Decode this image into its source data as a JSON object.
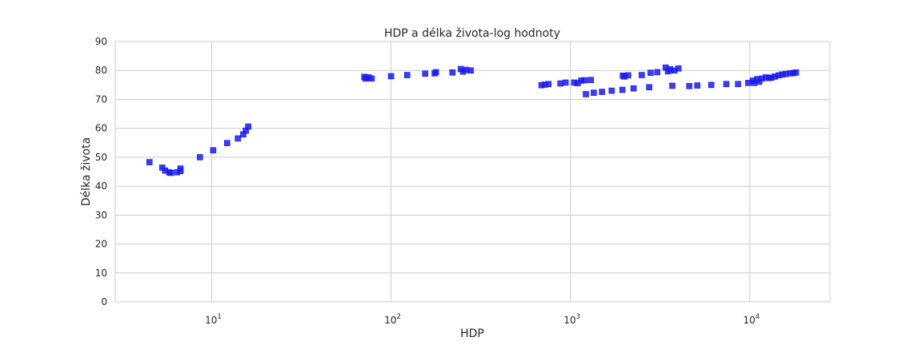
{
  "chart_data": {
    "type": "scatter",
    "title": "HDP a délka života-log hodnoty",
    "xlabel": "HDP",
    "ylabel": "Délka života",
    "x_scale": "log",
    "xlim": [
      2.9,
      28000
    ],
    "ylim": [
      0,
      90
    ],
    "y_ticks": [
      0,
      10,
      20,
      30,
      40,
      50,
      60,
      70,
      80,
      90
    ],
    "x_ticks": [
      {
        "value": 10,
        "base": "10",
        "exp": "1"
      },
      {
        "value": 100,
        "base": "10",
        "exp": "2"
      },
      {
        "value": 1000,
        "base": "10",
        "exp": "3"
      },
      {
        "value": 10000,
        "base": "10",
        "exp": "4"
      }
    ],
    "grid": true,
    "marker": "square",
    "color": "#1a1aee",
    "points": [
      [
        4.5,
        48.3
      ],
      [
        5.3,
        46.4
      ],
      [
        5.5,
        45.4
      ],
      [
        5.8,
        44.8
      ],
      [
        5.9,
        44.6
      ],
      [
        6.4,
        44.8
      ],
      [
        6.7,
        45.2
      ],
      [
        6.7,
        46.1
      ],
      [
        8.6,
        50.0
      ],
      [
        10.2,
        52.4
      ],
      [
        12.2,
        54.9
      ],
      [
        14.0,
        56.5
      ],
      [
        15.0,
        57.9
      ],
      [
        15.5,
        59.2
      ],
      [
        16.0,
        60.6
      ],
      [
        71,
        77.8
      ],
      [
        72,
        77.2
      ],
      [
        75,
        77.6
      ],
      [
        78,
        77.2
      ],
      [
        100,
        78.0
      ],
      [
        123,
        78.4
      ],
      [
        155,
        78.9
      ],
      [
        175,
        79.0
      ],
      [
        178,
        79.4
      ],
      [
        220,
        79.3
      ],
      [
        245,
        80.5
      ],
      [
        252,
        79.6
      ],
      [
        262,
        80.2
      ],
      [
        278,
        80.0
      ],
      [
        690,
        74.9
      ],
      [
        720,
        75.1
      ],
      [
        755,
        75.3
      ],
      [
        880,
        75.5
      ],
      [
        940,
        75.8
      ],
      [
        1050,
        75.8
      ],
      [
        1100,
        75.6
      ],
      [
        1150,
        76.5
      ],
      [
        1200,
        76.6
      ],
      [
        1300,
        76.7
      ],
      [
        1220,
        71.8
      ],
      [
        1350,
        72.3
      ],
      [
        1500,
        72.6
      ],
      [
        1700,
        73.0
      ],
      [
        1950,
        73.3
      ],
      [
        2250,
        73.8
      ],
      [
        2750,
        74.2
      ],
      [
        1960,
        78.2
      ],
      [
        2000,
        77.9
      ],
      [
        2100,
        78.3
      ],
      [
        2500,
        78.4
      ],
      [
        2800,
        79.2
      ],
      [
        3050,
        79.4
      ],
      [
        3400,
        81.0
      ],
      [
        3500,
        79.7
      ],
      [
        3600,
        80.4
      ],
      [
        3800,
        80.0
      ],
      [
        4000,
        80.7
      ],
      [
        3700,
        74.7
      ],
      [
        4600,
        74.6
      ],
      [
        5100,
        74.8
      ],
      [
        6100,
        75.0
      ],
      [
        7400,
        75.3
      ],
      [
        8600,
        75.3
      ],
      [
        9800,
        75.7
      ],
      [
        10400,
        76.5
      ],
      [
        10600,
        75.7
      ],
      [
        11000,
        77.0
      ],
      [
        11300,
        76.1
      ],
      [
        11700,
        77.2
      ],
      [
        12300,
        77.6
      ],
      [
        12800,
        77.4
      ],
      [
        13200,
        77.5
      ],
      [
        13800,
        77.9
      ],
      [
        14500,
        78.3
      ],
      [
        15200,
        78.6
      ],
      [
        15900,
        78.8
      ],
      [
        16800,
        79.0
      ],
      [
        17500,
        79.1
      ],
      [
        18100,
        79.3
      ]
    ]
  }
}
